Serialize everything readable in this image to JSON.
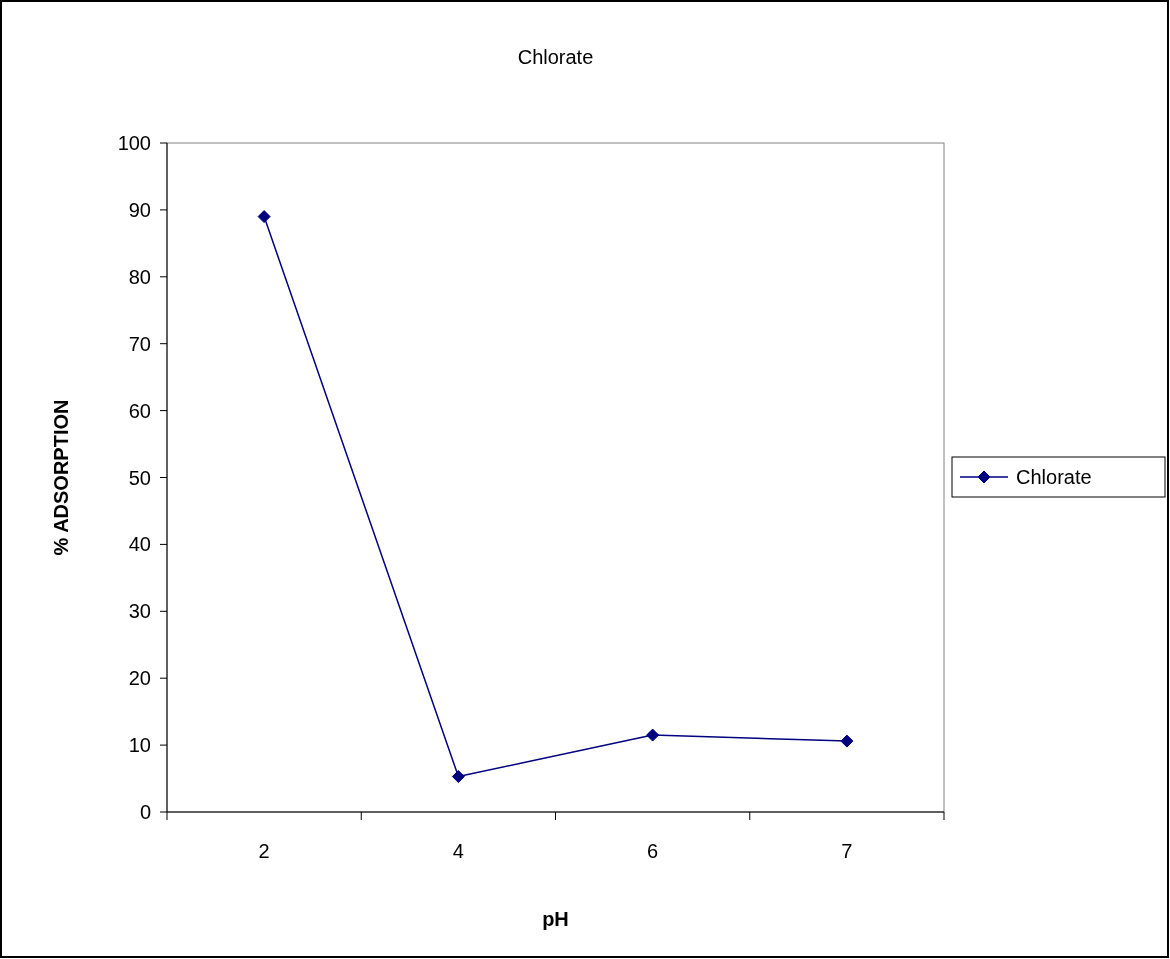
{
  "chart_data": {
    "type": "line",
    "title": "Chlorate",
    "xlabel": "pH",
    "ylabel": "% ADSORPTION",
    "categories": [
      "2",
      "4",
      "6",
      "7"
    ],
    "series": [
      {
        "name": "Chlorate",
        "color": "#000080",
        "values": [
          89,
          5.3,
          11.5,
          10.6
        ]
      }
    ],
    "ylim": [
      0,
      100
    ],
    "yticks": [
      0,
      10,
      20,
      30,
      40,
      50,
      60,
      70,
      80,
      90,
      100
    ],
    "grid": false,
    "legend": "right",
    "marker": "diamond",
    "line_style": "solid"
  }
}
